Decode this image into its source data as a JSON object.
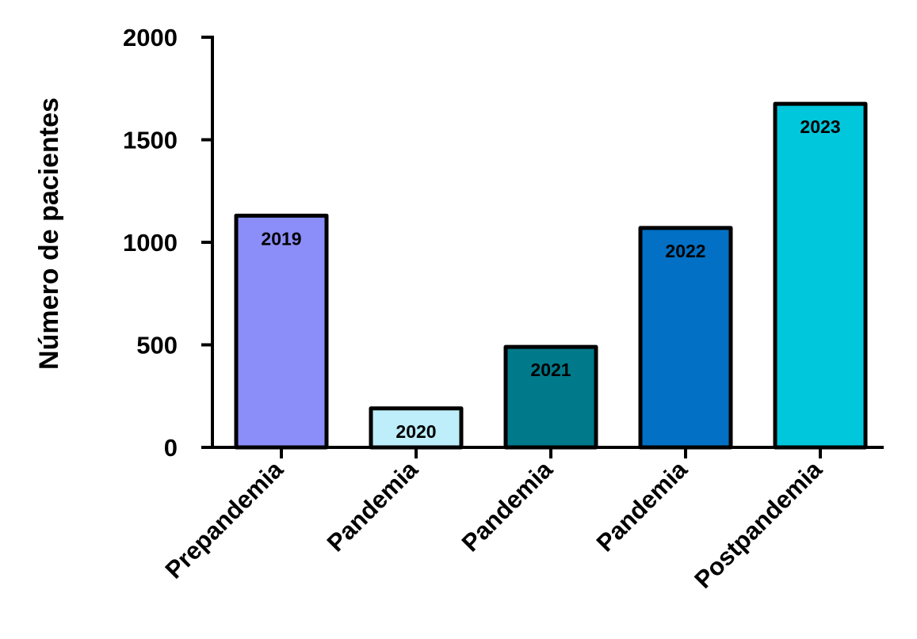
{
  "chart_data": {
    "type": "bar",
    "title": "",
    "xlabel": "",
    "ylabel": "Número de pacientes",
    "ylim": [
      0,
      2000
    ],
    "yticks": [
      0,
      500,
      1000,
      1500,
      2000
    ],
    "grid": false,
    "legend": "none",
    "categories": [
      "Prepandemia",
      "Pandemia",
      "Pandemia",
      "Pandemia",
      "Postpandemia"
    ],
    "bar_labels": [
      "2019",
      "2020",
      "2021",
      "2022",
      "2023"
    ],
    "values": [
      1130,
      190,
      490,
      1070,
      1675
    ],
    "colors": [
      "#8b8ef8",
      "#bdeefa",
      "#007a8a",
      "#0270c4",
      "#00c7dc"
    ]
  }
}
